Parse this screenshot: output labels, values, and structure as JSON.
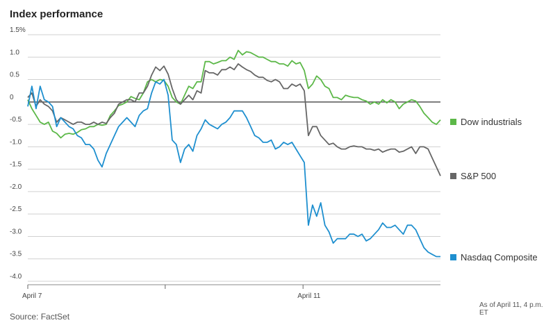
{
  "header": {
    "title": "Index performance"
  },
  "footer": {
    "source": "Source: FactSet",
    "note": "As of April 11, 4 p.m. ET"
  },
  "chart_data": {
    "type": "line",
    "title": "Index performance",
    "ylim": [
      -4.0,
      1.5
    ],
    "yticks": [
      {
        "value": 1.5,
        "label": "1.5%"
      },
      {
        "value": 1.0,
        "label": "1.0"
      },
      {
        "value": 0.5,
        "label": "0.5"
      },
      {
        "value": 0,
        "label": "0"
      },
      {
        "value": -0.5,
        "label": "-0.5"
      },
      {
        "value": -1.0,
        "label": "-1.0"
      },
      {
        "value": -1.5,
        "label": "-1.5"
      },
      {
        "value": -2.0,
        "label": "-2.0"
      },
      {
        "value": -2.5,
        "label": "-2.5"
      },
      {
        "value": -3.0,
        "label": "-3.0"
      },
      {
        "value": -3.5,
        "label": "-3.5"
      },
      {
        "value": -4.0,
        "label": "-4.0"
      }
    ],
    "xlim": [
      0,
      100
    ],
    "xticks": [
      {
        "value": 0,
        "label": "April 7"
      },
      {
        "value": 33.3,
        "label": ""
      },
      {
        "value": 66.7,
        "label": "April 11"
      }
    ],
    "grid": true,
    "legend": "right",
    "series": [
      {
        "name": "Dow industrials",
        "color": "#5cb848",
        "points": [
          [
            0,
            0.05
          ],
          [
            1,
            -0.15
          ],
          [
            2,
            -0.3
          ],
          [
            3,
            -0.45
          ],
          [
            4,
            -0.5
          ],
          [
            5,
            -0.45
          ],
          [
            6,
            -0.65
          ],
          [
            7,
            -0.7
          ],
          [
            8,
            -0.8
          ],
          [
            9,
            -0.72
          ],
          [
            10,
            -0.7
          ],
          [
            11,
            -0.72
          ],
          [
            12,
            -0.68
          ],
          [
            13,
            -0.62
          ],
          [
            14,
            -0.6
          ],
          [
            15,
            -0.55
          ],
          [
            16,
            -0.55
          ],
          [
            17,
            -0.5
          ],
          [
            18,
            -0.52
          ],
          [
            19,
            -0.5
          ],
          [
            20,
            -0.3
          ],
          [
            21,
            -0.2
          ],
          [
            22,
            -0.08
          ],
          [
            23,
            -0.05
          ],
          [
            24,
            0.0
          ],
          [
            25,
            0.12
          ],
          [
            26,
            0.08
          ],
          [
            27,
            0.05
          ],
          [
            28,
            0.2
          ],
          [
            29,
            0.45
          ],
          [
            30,
            0.5
          ],
          [
            31,
            0.45
          ],
          [
            32,
            0.5
          ],
          [
            33,
            0.48
          ],
          [
            34,
            0.35
          ],
          [
            35,
            0.1
          ],
          [
            36,
            0.0
          ],
          [
            37,
            -0.05
          ],
          [
            38,
            0.15
          ],
          [
            39,
            0.35
          ],
          [
            40,
            0.3
          ],
          [
            41,
            0.45
          ],
          [
            42,
            0.45
          ],
          [
            43,
            0.9
          ],
          [
            44,
            0.9
          ],
          [
            45,
            0.85
          ],
          [
            46,
            0.88
          ],
          [
            47,
            0.92
          ],
          [
            48,
            0.92
          ],
          [
            49,
            1.0
          ],
          [
            50,
            0.95
          ],
          [
            51,
            1.15
          ],
          [
            52,
            1.05
          ],
          [
            53,
            1.12
          ],
          [
            54,
            1.1
          ],
          [
            55,
            1.05
          ],
          [
            56,
            1.0
          ],
          [
            57,
            1.0
          ],
          [
            58,
            0.95
          ],
          [
            59,
            0.9
          ],
          [
            60,
            0.9
          ],
          [
            61,
            0.85
          ],
          [
            62,
            0.85
          ],
          [
            63,
            0.8
          ],
          [
            64,
            0.92
          ],
          [
            65,
            0.85
          ],
          [
            66,
            0.88
          ],
          [
            67,
            0.7
          ],
          [
            68,
            0.3
          ],
          [
            69,
            0.4
          ],
          [
            70,
            0.58
          ],
          [
            71,
            0.5
          ],
          [
            72,
            0.35
          ],
          [
            73,
            0.3
          ],
          [
            74,
            0.1
          ],
          [
            75,
            0.1
          ],
          [
            76,
            0.05
          ],
          [
            77,
            0.15
          ],
          [
            78,
            0.12
          ],
          [
            79,
            0.1
          ],
          [
            80,
            0.1
          ],
          [
            81,
            0.05
          ],
          [
            82,
            0.02
          ],
          [
            83,
            -0.05
          ],
          [
            84,
            0.0
          ],
          [
            85,
            -0.05
          ],
          [
            86,
            0.05
          ],
          [
            87,
            -0.02
          ],
          [
            88,
            0.05
          ],
          [
            89,
            0.0
          ],
          [
            90,
            -0.15
          ],
          [
            91,
            -0.05
          ],
          [
            92,
            0.0
          ],
          [
            93,
            0.05
          ],
          [
            94,
            0.02
          ],
          [
            95,
            -0.1
          ],
          [
            96,
            -0.25
          ],
          [
            97,
            -0.35
          ],
          [
            98,
            -0.45
          ],
          [
            99,
            -0.5
          ],
          [
            100,
            -0.4
          ]
        ]
      },
      {
        "name": "S&P 500",
        "color": "#666666",
        "points": [
          [
            0,
            0.1
          ],
          [
            1,
            0.2
          ],
          [
            2,
            -0.1
          ],
          [
            3,
            0.05
          ],
          [
            4,
            -0.05
          ],
          [
            5,
            -0.1
          ],
          [
            6,
            -0.2
          ],
          [
            7,
            -0.45
          ],
          [
            8,
            -0.35
          ],
          [
            9,
            -0.4
          ],
          [
            10,
            -0.45
          ],
          [
            11,
            -0.5
          ],
          [
            12,
            -0.45
          ],
          [
            13,
            -0.45
          ],
          [
            14,
            -0.5
          ],
          [
            15,
            -0.5
          ],
          [
            16,
            -0.45
          ],
          [
            17,
            -0.5
          ],
          [
            18,
            -0.45
          ],
          [
            19,
            -0.48
          ],
          [
            20,
            -0.35
          ],
          [
            21,
            -0.25
          ],
          [
            22,
            -0.05
          ],
          [
            23,
            0.0
          ],
          [
            24,
            0.05
          ],
          [
            25,
            0.05
          ],
          [
            26,
            0.0
          ],
          [
            27,
            0.2
          ],
          [
            28,
            0.2
          ],
          [
            29,
            0.35
          ],
          [
            30,
            0.6
          ],
          [
            31,
            0.78
          ],
          [
            32,
            0.7
          ],
          [
            33,
            0.8
          ],
          [
            34,
            0.62
          ],
          [
            35,
            0.3
          ],
          [
            36,
            0.05
          ],
          [
            37,
            -0.05
          ],
          [
            38,
            0.05
          ],
          [
            39,
            0.15
          ],
          [
            40,
            0.05
          ],
          [
            41,
            0.25
          ],
          [
            42,
            0.2
          ],
          [
            43,
            0.7
          ],
          [
            44,
            0.65
          ],
          [
            45,
            0.65
          ],
          [
            46,
            0.6
          ],
          [
            47,
            0.72
          ],
          [
            48,
            0.72
          ],
          [
            49,
            0.78
          ],
          [
            50,
            0.72
          ],
          [
            51,
            0.85
          ],
          [
            52,
            0.78
          ],
          [
            53,
            0.72
          ],
          [
            54,
            0.68
          ],
          [
            55,
            0.6
          ],
          [
            56,
            0.55
          ],
          [
            57,
            0.55
          ],
          [
            58,
            0.48
          ],
          [
            59,
            0.45
          ],
          [
            60,
            0.5
          ],
          [
            61,
            0.45
          ],
          [
            62,
            0.3
          ],
          [
            63,
            0.3
          ],
          [
            64,
            0.4
          ],
          [
            65,
            0.35
          ],
          [
            66,
            0.4
          ],
          [
            67,
            0.25
          ],
          [
            68,
            -0.75
          ],
          [
            69,
            -0.55
          ],
          [
            70,
            -0.55
          ],
          [
            71,
            -0.75
          ],
          [
            72,
            -0.85
          ],
          [
            73,
            -0.95
          ],
          [
            74,
            -0.92
          ],
          [
            75,
            -1.0
          ],
          [
            76,
            -1.05
          ],
          [
            77,
            -1.05
          ],
          [
            78,
            -1.0
          ],
          [
            79,
            -0.98
          ],
          [
            80,
            -1.0
          ],
          [
            81,
            -1.0
          ],
          [
            82,
            -1.05
          ],
          [
            83,
            -1.05
          ],
          [
            84,
            -1.08
          ],
          [
            85,
            -1.05
          ],
          [
            86,
            -1.12
          ],
          [
            87,
            -1.08
          ],
          [
            88,
            -1.05
          ],
          [
            89,
            -1.05
          ],
          [
            90,
            -1.12
          ],
          [
            91,
            -1.1
          ],
          [
            92,
            -1.05
          ],
          [
            93,
            -1.0
          ],
          [
            94,
            -1.15
          ],
          [
            95,
            -1.0
          ],
          [
            96,
            -1.0
          ],
          [
            97,
            -1.05
          ],
          [
            98,
            -1.25
          ],
          [
            99,
            -1.45
          ],
          [
            100,
            -1.65
          ]
        ]
      },
      {
        "name": "Nasdaq Composite",
        "color": "#1e8fcf",
        "points": [
          [
            0,
            -0.1
          ],
          [
            1,
            0.35
          ],
          [
            2,
            -0.15
          ],
          [
            3,
            0.35
          ],
          [
            4,
            0.05
          ],
          [
            5,
            0.0
          ],
          [
            6,
            -0.1
          ],
          [
            7,
            -0.55
          ],
          [
            8,
            -0.35
          ],
          [
            9,
            -0.45
          ],
          [
            10,
            -0.55
          ],
          [
            11,
            -0.6
          ],
          [
            12,
            -0.75
          ],
          [
            13,
            -0.8
          ],
          [
            14,
            -0.95
          ],
          [
            15,
            -0.95
          ],
          [
            16,
            -1.05
          ],
          [
            17,
            -1.3
          ],
          [
            18,
            -1.45
          ],
          [
            19,
            -1.15
          ],
          [
            20,
            -0.95
          ],
          [
            21,
            -0.75
          ],
          [
            22,
            -0.55
          ],
          [
            23,
            -0.45
          ],
          [
            24,
            -0.35
          ],
          [
            25,
            -0.45
          ],
          [
            26,
            -0.55
          ],
          [
            27,
            -0.3
          ],
          [
            28,
            -0.2
          ],
          [
            29,
            -0.15
          ],
          [
            30,
            0.2
          ],
          [
            31,
            0.45
          ],
          [
            32,
            0.4
          ],
          [
            33,
            0.5
          ],
          [
            34,
            0.15
          ],
          [
            35,
            -0.85
          ],
          [
            36,
            -0.95
          ],
          [
            37,
            -1.35
          ],
          [
            38,
            -1.05
          ],
          [
            39,
            -0.95
          ],
          [
            40,
            -1.1
          ],
          [
            41,
            -0.75
          ],
          [
            42,
            -0.6
          ],
          [
            43,
            -0.4
          ],
          [
            44,
            -0.5
          ],
          [
            45,
            -0.55
          ],
          [
            46,
            -0.6
          ],
          [
            47,
            -0.5
          ],
          [
            48,
            -0.45
          ],
          [
            49,
            -0.35
          ],
          [
            50,
            -0.2
          ],
          [
            51,
            -0.2
          ],
          [
            52,
            -0.2
          ],
          [
            53,
            -0.35
          ],
          [
            54,
            -0.55
          ],
          [
            55,
            -0.75
          ],
          [
            56,
            -0.8
          ],
          [
            57,
            -0.9
          ],
          [
            58,
            -0.9
          ],
          [
            59,
            -0.85
          ],
          [
            60,
            -1.05
          ],
          [
            61,
            -1.0
          ],
          [
            62,
            -0.9
          ],
          [
            63,
            -0.95
          ],
          [
            64,
            -0.9
          ],
          [
            65,
            -1.05
          ],
          [
            66,
            -1.2
          ],
          [
            67,
            -1.35
          ],
          [
            68,
            -2.75
          ],
          [
            69,
            -2.3
          ],
          [
            70,
            -2.55
          ],
          [
            71,
            -2.25
          ],
          [
            72,
            -2.75
          ],
          [
            73,
            -2.9
          ],
          [
            74,
            -3.15
          ],
          [
            75,
            -3.05
          ],
          [
            76,
            -3.05
          ],
          [
            77,
            -3.05
          ],
          [
            78,
            -2.95
          ],
          [
            79,
            -2.95
          ],
          [
            80,
            -3.0
          ],
          [
            81,
            -2.95
          ],
          [
            82,
            -3.1
          ],
          [
            83,
            -3.05
          ],
          [
            84,
            -2.95
          ],
          [
            85,
            -2.85
          ],
          [
            86,
            -2.7
          ],
          [
            87,
            -2.8
          ],
          [
            88,
            -2.8
          ],
          [
            89,
            -2.75
          ],
          [
            90,
            -2.85
          ],
          [
            91,
            -2.95
          ],
          [
            92,
            -2.75
          ],
          [
            93,
            -2.75
          ],
          [
            94,
            -2.85
          ],
          [
            95,
            -3.05
          ],
          [
            96,
            -3.25
          ],
          [
            97,
            -3.35
          ],
          [
            98,
            -3.4
          ],
          [
            99,
            -3.45
          ],
          [
            100,
            -3.45
          ]
        ]
      }
    ]
  }
}
